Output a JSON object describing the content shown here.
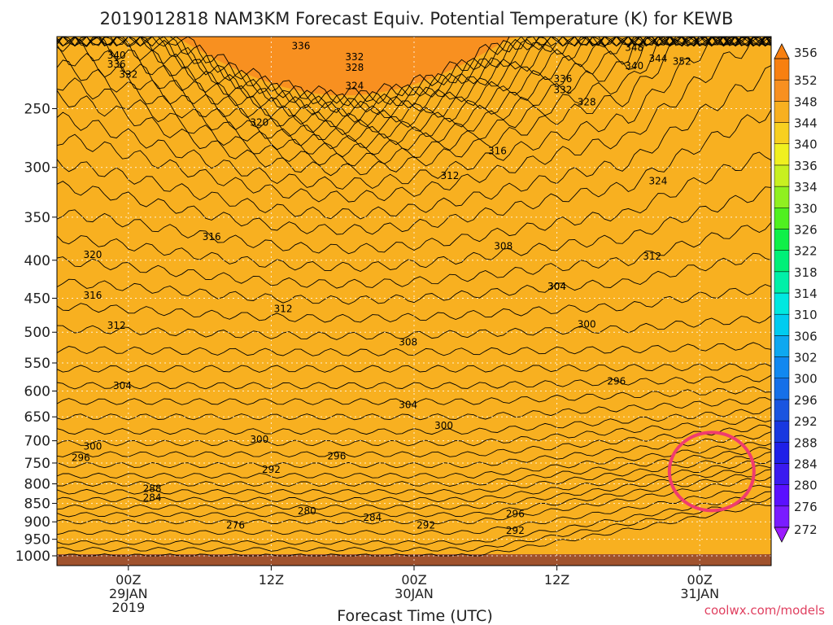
{
  "chart_data": {
    "type": "heatmap",
    "title": "2019012818 NAM3KM Forecast Equiv. Potential Temperature (K) for KEWB",
    "xlabel": "Forecast Time (UTC)",
    "ylabel": "",
    "yscale": "log",
    "ylim": [
      1000,
      200
    ],
    "y_ticks": [
      250,
      300,
      350,
      400,
      450,
      500,
      550,
      600,
      650,
      700,
      750,
      800,
      850,
      900,
      950,
      1000
    ],
    "x_ticks": [
      {
        "t": 6,
        "lines": [
          "00Z",
          "29JAN",
          "2019"
        ]
      },
      {
        "t": 18,
        "lines": [
          "12Z",
          "",
          ""
        ]
      },
      {
        "t": 30,
        "lines": [
          "00Z",
          "30JAN",
          ""
        ]
      },
      {
        "t": 42,
        "lines": [
          "12Z",
          "",
          ""
        ]
      },
      {
        "t": 54,
        "lines": [
          "00Z",
          "31JAN",
          ""
        ]
      }
    ],
    "xlim": [
      0,
      60
    ],
    "colorbar": {
      "levels": [
        272,
        276,
        280,
        284,
        288,
        292,
        296,
        300,
        302,
        306,
        310,
        314,
        318,
        322,
        326,
        330,
        334,
        336,
        340,
        344,
        348,
        352,
        356
      ],
      "colors": [
        "#9b1bff",
        "#7a1cff",
        "#5a10ff",
        "#3a1af0",
        "#1f20e8",
        "#1838e0",
        "#1a55e0",
        "#1670e8",
        "#1188f0",
        "#0ea8f0",
        "#00ccf0",
        "#00e8e0",
        "#00f0a8",
        "#00f078",
        "#10f048",
        "#50f020",
        "#90f020",
        "#c8f020",
        "#f0f020",
        "#f8d020",
        "#f8b020",
        "#f89020",
        "#f88010"
      ]
    },
    "contour_labels": [
      {
        "v": 340,
        "t": 5.0,
        "p": 212
      },
      {
        "v": 336,
        "t": 5.0,
        "p": 218
      },
      {
        "v": 332,
        "t": 6.0,
        "p": 225
      },
      {
        "v": 336,
        "t": 20.5,
        "p": 206
      },
      {
        "v": 332,
        "t": 25.0,
        "p": 213
      },
      {
        "v": 328,
        "t": 25.0,
        "p": 220
      },
      {
        "v": 324,
        "t": 25.0,
        "p": 233
      },
      {
        "v": 320,
        "t": 17.0,
        "p": 261
      },
      {
        "v": 316,
        "t": 37.0,
        "p": 285
      },
      {
        "v": 312,
        "t": 33.0,
        "p": 308
      },
      {
        "v": 308,
        "t": 37.5,
        "p": 383
      },
      {
        "v": 304,
        "t": 42.0,
        "p": 434
      },
      {
        "v": 300,
        "t": 44.5,
        "p": 488
      },
      {
        "v": 296,
        "t": 47.0,
        "p": 582
      },
      {
        "v": 312,
        "t": 50.0,
        "p": 395
      },
      {
        "v": 316,
        "t": 13.0,
        "p": 372
      },
      {
        "v": 320,
        "t": 3.0,
        "p": 393
      },
      {
        "v": 316,
        "t": 3.0,
        "p": 446
      },
      {
        "v": 312,
        "t": 19.0,
        "p": 465
      },
      {
        "v": 312,
        "t": 5.0,
        "p": 490
      },
      {
        "v": 308,
        "t": 29.5,
        "p": 516
      },
      {
        "v": 304,
        "t": 5.5,
        "p": 590
      },
      {
        "v": 304,
        "t": 29.5,
        "p": 626
      },
      {
        "v": 300,
        "t": 32.5,
        "p": 668
      },
      {
        "v": 300,
        "t": 3.0,
        "p": 712
      },
      {
        "v": 300,
        "t": 17.0,
        "p": 697
      },
      {
        "v": 296,
        "t": 2.0,
        "p": 738
      },
      {
        "v": 296,
        "t": 23.5,
        "p": 734
      },
      {
        "v": 292,
        "t": 18.0,
        "p": 765
      },
      {
        "v": 288,
        "t": 8.0,
        "p": 812
      },
      {
        "v": 284,
        "t": 8.0,
        "p": 835
      },
      {
        "v": 280,
        "t": 21.0,
        "p": 870
      },
      {
        "v": 284,
        "t": 26.5,
        "p": 888
      },
      {
        "v": 276,
        "t": 15.0,
        "p": 910
      },
      {
        "v": 292,
        "t": 31.0,
        "p": 910
      },
      {
        "v": 296,
        "t": 38.5,
        "p": 878
      },
      {
        "v": 292,
        "t": 38.5,
        "p": 925
      },
      {
        "v": 332,
        "t": 42.5,
        "p": 236
      },
      {
        "v": 336,
        "t": 42.5,
        "p": 228
      },
      {
        "v": 328,
        "t": 44.5,
        "p": 245
      },
      {
        "v": 348,
        "t": 48.5,
        "p": 207
      },
      {
        "v": 344,
        "t": 50.5,
        "p": 214
      },
      {
        "v": 340,
        "t": 48.5,
        "p": 219
      },
      {
        "v": 352,
        "t": 52.5,
        "p": 216
      },
      {
        "v": 324,
        "t": 50.5,
        "p": 313
      },
      {
        "v": 304,
        "t": 42.0,
        "p": 434
      }
    ],
    "annotations": [
      {
        "type": "circle",
        "t": 55.0,
        "p": 770,
        "color": "#f03c6e"
      }
    ],
    "surface_color": "#a0522d"
  },
  "credit": "coolwx.com/models"
}
